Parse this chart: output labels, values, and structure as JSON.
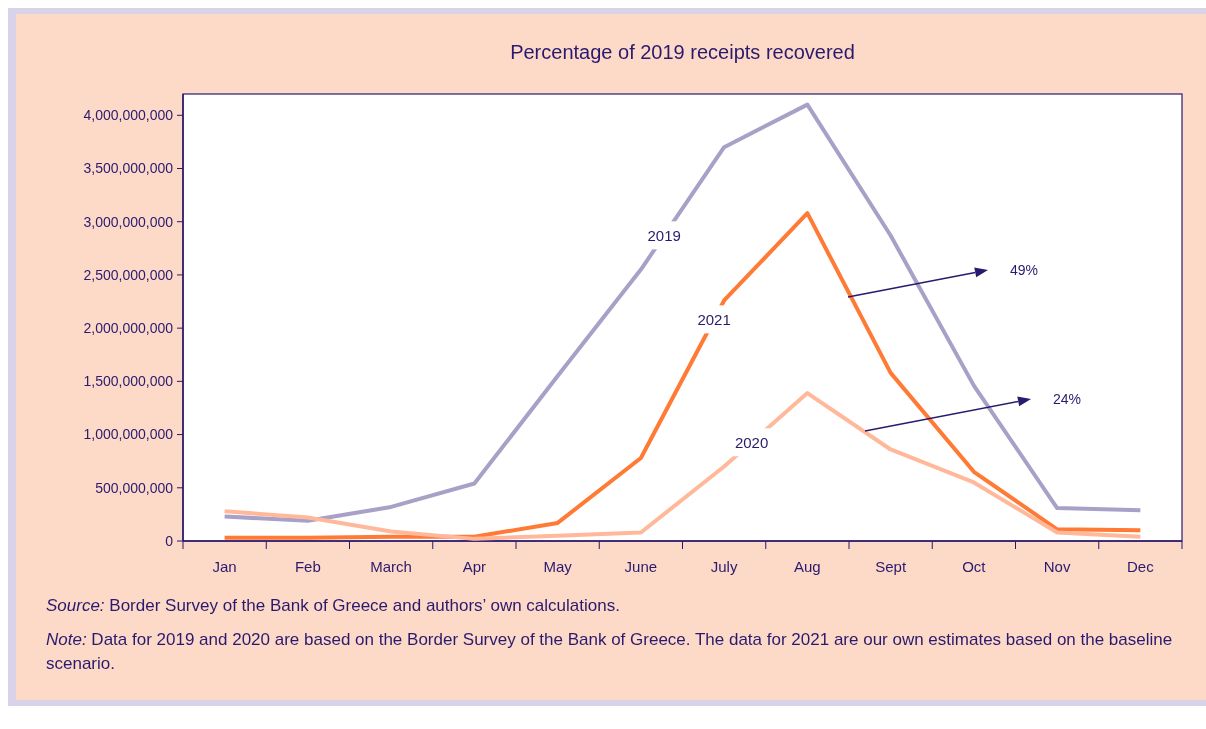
{
  "chart_data": {
    "type": "line",
    "title": "Percentage of 2019 receipts recovered",
    "categories": [
      "Jan",
      "Feb",
      "March",
      "Apr",
      "May",
      "June",
      "July",
      "Aug",
      "Sept",
      "Oct",
      "Nov",
      "Dec"
    ],
    "series": [
      {
        "name": "2019",
        "color": "#a9a0c8",
        "values": [
          230000000,
          190000000,
          320000000,
          540000000,
          1550000000,
          2550000000,
          3700000000,
          4100000000,
          2870000000,
          1460000000,
          310000000,
          290000000
        ]
      },
      {
        "name": "2021",
        "color": "#ff7a35",
        "values": [
          30000000,
          30000000,
          40000000,
          40000000,
          170000000,
          780000000,
          2260000000,
          3080000000,
          1580000000,
          650000000,
          110000000,
          100000000
        ]
      },
      {
        "name": "2020",
        "color": "#ffb99a",
        "values": [
          280000000,
          220000000,
          90000000,
          20000000,
          50000000,
          80000000,
          700000000,
          1390000000,
          860000000,
          550000000,
          80000000,
          40000000
        ]
      }
    ],
    "ylim": [
      0,
      4200000000
    ],
    "yticks": [
      {
        "value": 0,
        "label": "0"
      },
      {
        "value": 500000000,
        "label": "500,000,000"
      },
      {
        "value": 1000000000,
        "label": "1,000,000,000"
      },
      {
        "value": 1500000000,
        "label": "1,500,000,000"
      },
      {
        "value": 2000000000,
        "label": "2,000,000,000"
      },
      {
        "value": 2500000000,
        "label": "2,500,000,000"
      },
      {
        "value": 3000000000,
        "label": "3,000,000,000"
      },
      {
        "value": 3500000000,
        "label": "3,500,000,000"
      },
      {
        "value": 4000000000,
        "label": "4,000,000,000"
      }
    ],
    "grid": false,
    "legend": false,
    "marker": "none",
    "line_style": "solid",
    "annotations": [
      "49%",
      "24%",
      "Source: Border Survey of the Bank of Greece and authors’ own calculations.",
      "Note: Data for 2019 and 2020 are based on the Border Survey of the Bank of Greece. The data for 2021 are our own estimates based on the baseline scenario."
    ]
  }
}
